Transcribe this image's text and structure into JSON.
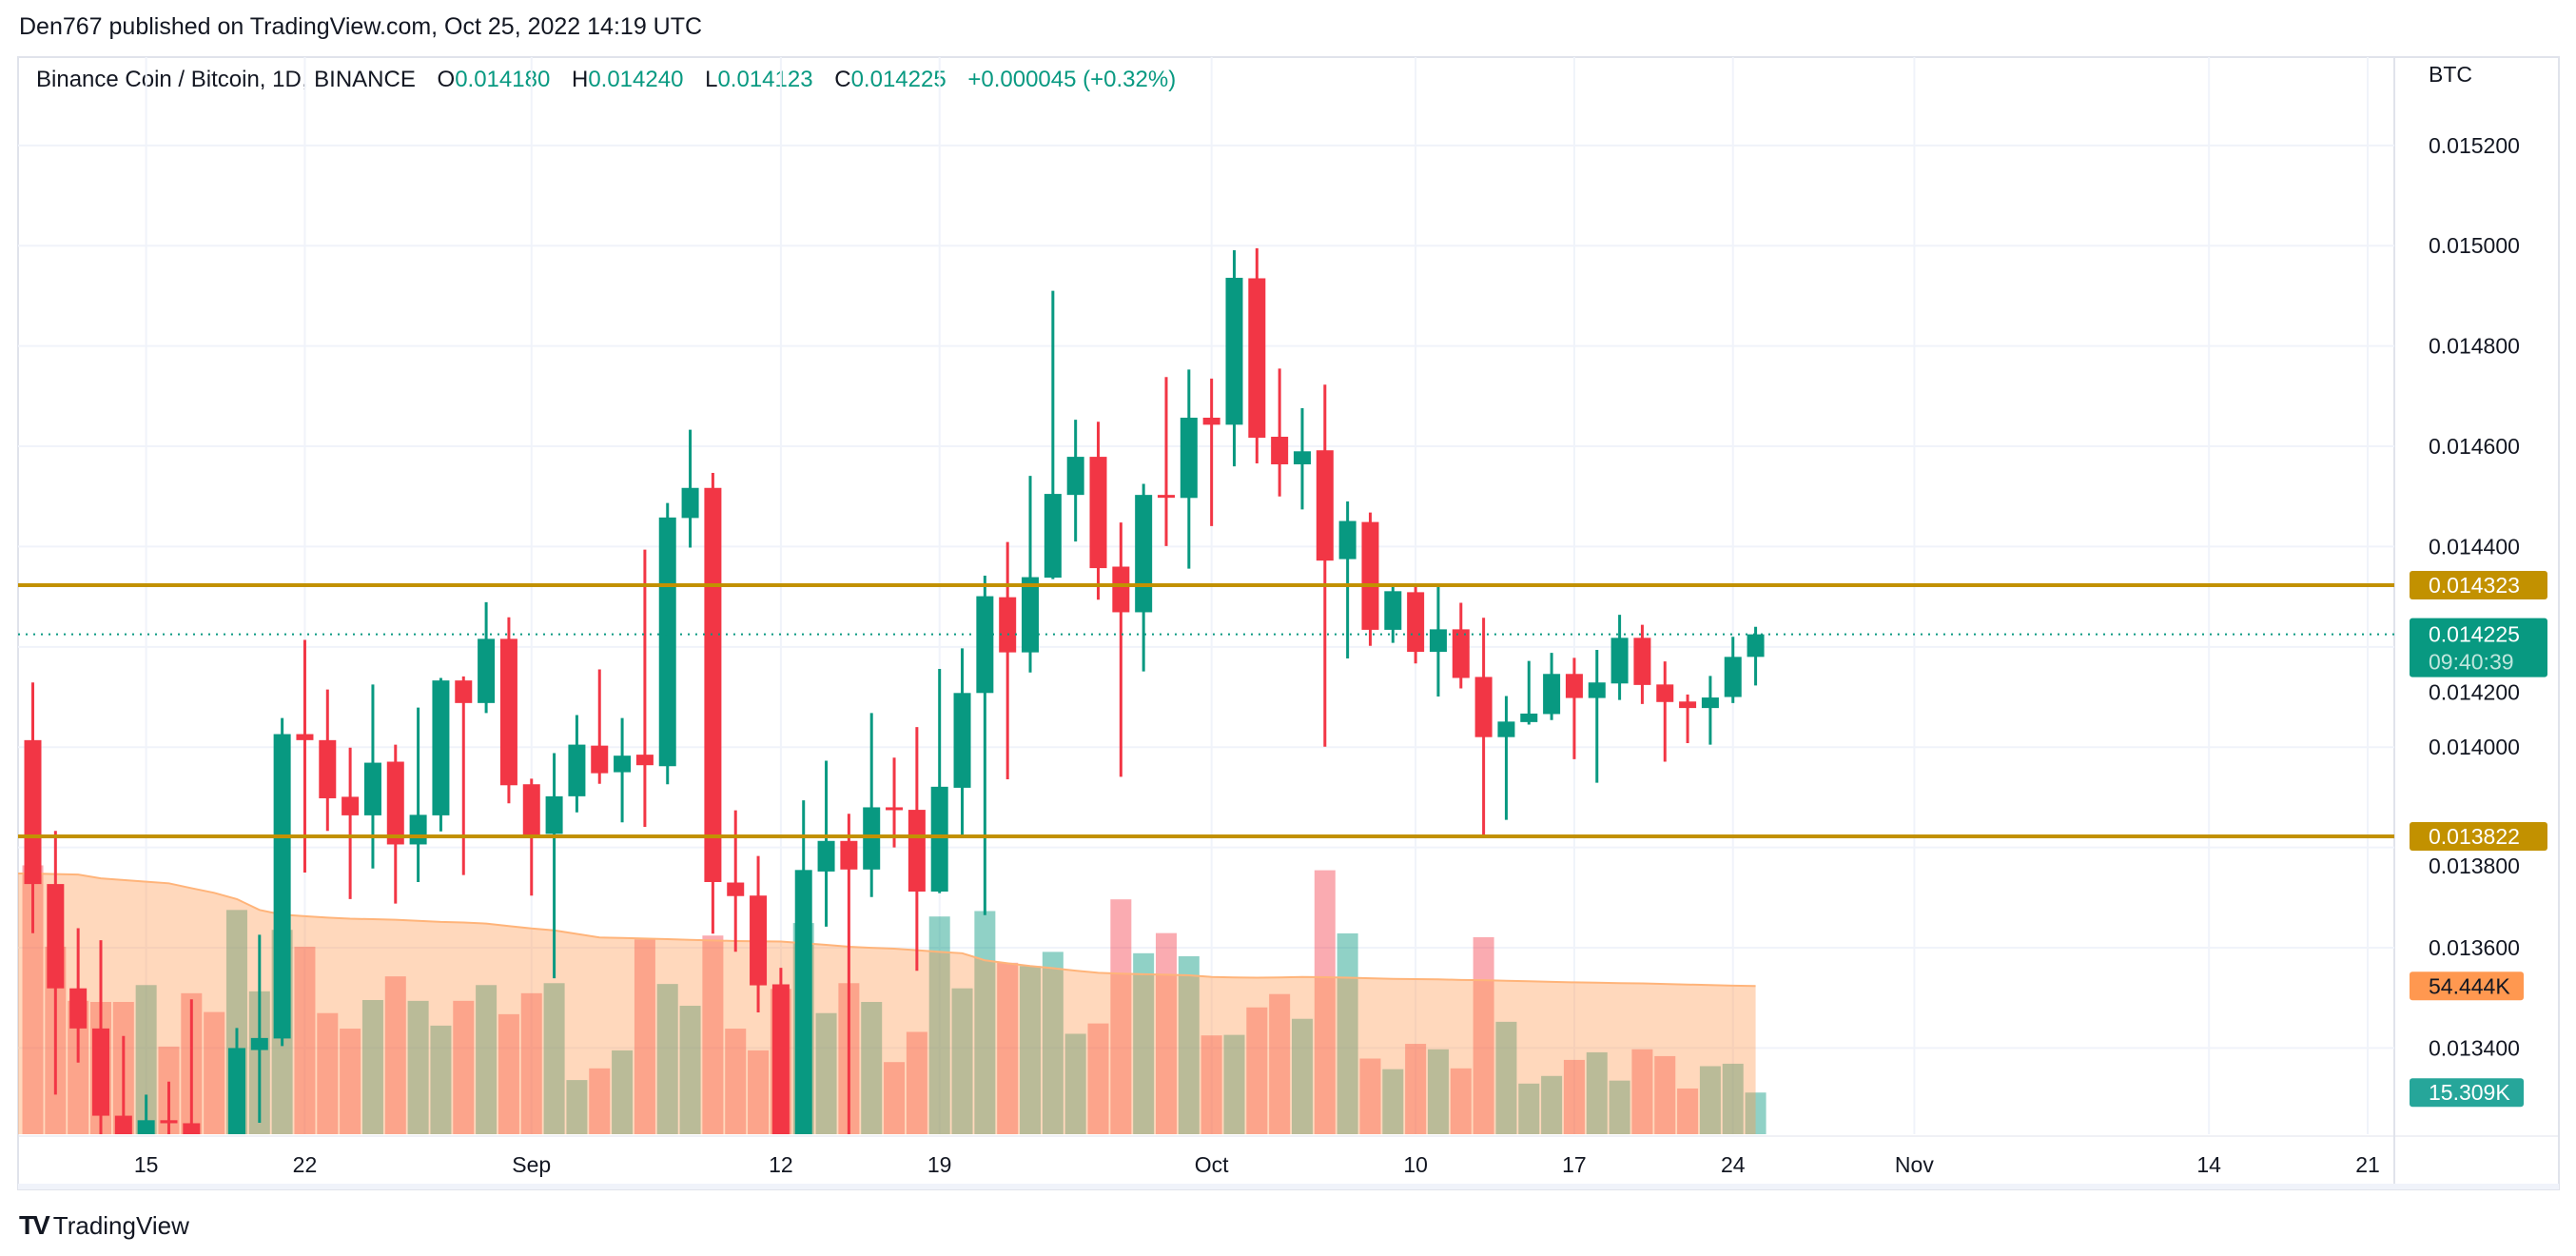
{
  "publisher_line": "Den767 published on TradingView.com, Oct 25, 2022 14:19 UTC",
  "legend": {
    "symbol": "Binance Coin / Bitcoin, 1D, BINANCE",
    "o_label": "O",
    "o": "0.014180",
    "h_label": "H",
    "h": "0.014240",
    "l_label": "L",
    "l": "0.014123",
    "c_label": "C",
    "c": "0.014225",
    "change": "+0.000045 (+0.32%)"
  },
  "footer": {
    "logo_text": "TradingView"
  },
  "colors": {
    "up": "#089981",
    "down": "#f23645",
    "level": "#c29100",
    "volume_ma": "#ff9850",
    "volume_label": "#26a69a"
  },
  "chart_data": {
    "type": "candlestick",
    "currency_label": "BTC",
    "ylim": [
      0.01316,
      0.01526
    ],
    "grid": true,
    "y_ticks": [
      "0.015200",
      "0.015000",
      "0.014800",
      "0.014600",
      "0.014400",
      "0.014200",
      "0.014000",
      "0.013800",
      "0.013600",
      "0.013400"
    ],
    "x_ticks": [
      {
        "label": "15",
        "date": "2022-08-15"
      },
      {
        "label": "22",
        "date": "2022-08-22"
      },
      {
        "label": "Sep",
        "date": "2022-09-01"
      },
      {
        "label": "12",
        "date": "2022-09-12"
      },
      {
        "label": "19",
        "date": "2022-09-19"
      },
      {
        "label": "Oct",
        "date": "2022-10-01"
      },
      {
        "label": "10",
        "date": "2022-10-10"
      },
      {
        "label": "17",
        "date": "2022-10-17"
      },
      {
        "label": "24",
        "date": "2022-10-24"
      },
      {
        "label": "Nov",
        "date": "2022-11-01"
      },
      {
        "label": "14",
        "date": "2022-11-14"
      },
      {
        "label": "21",
        "date": "2022-11-21"
      }
    ],
    "first_date": "2022-08-10",
    "ohlc": [
      [
        0.014014,
        0.014129,
        0.013629,
        0.013727
      ],
      [
        0.013727,
        0.013833,
        0.013307,
        0.013519
      ],
      [
        0.013519,
        0.013639,
        0.013371,
        0.013439
      ],
      [
        0.013439,
        0.013615,
        0.013222,
        0.013265
      ],
      [
        0.013265,
        0.013424,
        0.0132,
        0.013215
      ],
      [
        0.01321,
        0.013307,
        0.0132,
        0.013256
      ],
      [
        0.013256,
        0.013333,
        0.01322,
        0.01325
      ],
      [
        0.01325,
        0.013497,
        0.0132,
        0.013215
      ],
      [
        0.0132,
        0.01321,
        0.01312,
        0.01315
      ],
      [
        0.01318,
        0.01344,
        0.01315,
        0.0134
      ],
      [
        0.013396,
        0.013626,
        0.013251,
        0.01342
      ],
      [
        0.013419,
        0.014058,
        0.013404,
        0.014026
      ],
      [
        0.014026,
        0.014214,
        0.01375,
        0.014014
      ],
      [
        0.014014,
        0.014115,
        0.013833,
        0.013898
      ],
      [
        0.013901,
        0.013999,
        0.013697,
        0.013864
      ],
      [
        0.013864,
        0.014125,
        0.013758,
        0.013969
      ],
      [
        0.013971,
        0.014005,
        0.013688,
        0.013806
      ],
      [
        0.013806,
        0.014079,
        0.013731,
        0.013865
      ],
      [
        0.013864,
        0.014138,
        0.013832,
        0.014133
      ],
      [
        0.014133,
        0.014141,
        0.013745,
        0.014088
      ],
      [
        0.014088,
        0.014289,
        0.014068,
        0.014216
      ],
      [
        0.014216,
        0.014259,
        0.013888,
        0.013924
      ],
      [
        0.013926,
        0.013937,
        0.013704,
        0.013825
      ],
      [
        0.013827,
        0.013988,
        0.013539,
        0.013902
      ],
      [
        0.013902,
        0.014064,
        0.01387,
        0.014005
      ],
      [
        0.014003,
        0.014155,
        0.013927,
        0.013948
      ],
      [
        0.01395,
        0.014058,
        0.01385,
        0.013983
      ],
      [
        0.013985,
        0.014394,
        0.013841,
        0.013964
      ],
      [
        0.013962,
        0.014487,
        0.013926,
        0.014458
      ],
      [
        0.014457,
        0.014633,
        0.014398,
        0.014517
      ],
      [
        0.014517,
        0.014547,
        0.013628,
        0.013731
      ],
      [
        0.01373,
        0.013874,
        0.013592,
        0.013703
      ],
      [
        0.013704,
        0.013783,
        0.013471,
        0.013525
      ],
      [
        0.013527,
        0.01356,
        0.01315,
        0.01318
      ],
      [
        0.01319,
        0.013894,
        0.01316,
        0.013755
      ],
      [
        0.013752,
        0.013973,
        0.013642,
        0.013813
      ],
      [
        0.013813,
        0.013867,
        0.0132,
        0.013756
      ],
      [
        0.013756,
        0.014068,
        0.013701,
        0.01388
      ],
      [
        0.01388,
        0.013979,
        0.0138,
        0.013875
      ],
      [
        0.013875,
        0.01404,
        0.013554,
        0.013712
      ],
      [
        0.013712,
        0.014156,
        0.013709,
        0.013921
      ],
      [
        0.013919,
        0.014197,
        0.013825,
        0.014108
      ],
      [
        0.014108,
        0.014342,
        0.013665,
        0.014301
      ],
      [
        0.014299,
        0.014409,
        0.013936,
        0.014189
      ],
      [
        0.014189,
        0.014541,
        0.014149,
        0.014339
      ],
      [
        0.014338,
        0.01491,
        0.014335,
        0.014505
      ],
      [
        0.014503,
        0.014653,
        0.01441,
        0.014579
      ],
      [
        0.014579,
        0.014649,
        0.014294,
        0.014357
      ],
      [
        0.01436,
        0.014448,
        0.013941,
        0.014269
      ],
      [
        0.014269,
        0.014525,
        0.014151,
        0.014503
      ],
      [
        0.014503,
        0.014738,
        0.014401,
        0.014498
      ],
      [
        0.014497,
        0.014753,
        0.014356,
        0.014657
      ],
      [
        0.014657,
        0.014735,
        0.014441,
        0.014643
      ],
      [
        0.014643,
        0.014991,
        0.01456,
        0.014936
      ],
      [
        0.014935,
        0.014995,
        0.014566,
        0.014617
      ],
      [
        0.014619,
        0.014755,
        0.0145,
        0.014564
      ],
      [
        0.014564,
        0.014676,
        0.014474,
        0.01459
      ],
      [
        0.014592,
        0.014723,
        0.014001,
        0.014372
      ],
      [
        0.014375,
        0.01449,
        0.014177,
        0.014451
      ],
      [
        0.014449,
        0.014468,
        0.014202,
        0.014234
      ],
      [
        0.014234,
        0.014323,
        0.014208,
        0.014311
      ],
      [
        0.014309,
        0.014323,
        0.014167,
        0.01419
      ],
      [
        0.01419,
        0.014325,
        0.014101,
        0.014235
      ],
      [
        0.014235,
        0.014288,
        0.014117,
        0.014138
      ],
      [
        0.01414,
        0.014258,
        0.013822,
        0.01402
      ],
      [
        0.01402,
        0.014102,
        0.013855,
        0.014051
      ],
      [
        0.01405,
        0.014172,
        0.014045,
        0.014067
      ],
      [
        0.014066,
        0.014188,
        0.014054,
        0.014146
      ],
      [
        0.014146,
        0.014178,
        0.013976,
        0.014098
      ],
      [
        0.014098,
        0.014194,
        0.013929,
        0.014129
      ],
      [
        0.014127,
        0.014264,
        0.014094,
        0.014218
      ],
      [
        0.014218,
        0.014244,
        0.014086,
        0.014124
      ],
      [
        0.014125,
        0.014171,
        0.013971,
        0.01409
      ],
      [
        0.014091,
        0.014105,
        0.014008,
        0.014078
      ],
      [
        0.014078,
        0.014142,
        0.014005,
        0.014099
      ],
      [
        0.0141,
        0.01422,
        0.014088,
        0.01418
      ],
      [
        0.01418,
        0.01424,
        0.014123,
        0.014225
      ]
    ],
    "volume_k": [
      98.8,
      68.9,
      49,
      48.6,
      48.6,
      54.8,
      32.2,
      51.8,
      44.9,
      82.4,
      52.5,
      75.1,
      68.9,
      44.5,
      38.8,
      49.3,
      58,
      49,
      39.9,
      49,
      54.8,
      44.1,
      51.8,
      55.5,
      19.9,
      24.2,
      30.8,
      71.6,
      55.2,
      47.2,
      73,
      38.8,
      30.8,
      53.4,
      77.6,
      44.5,
      55.5,
      48.6,
      26.5,
      37.6,
      80,
      53.6,
      82,
      63,
      61.8,
      67,
      36.9,
      40.7,
      86.3,
      66.5,
      73.9,
      65.4,
      36.3,
      36.5,
      46.6,
      51.5,
      42.4,
      97,
      73.8,
      27.8,
      23.9,
      33.2,
      31.2,
      24.2,
      72.4,
      41.3,
      18.6,
      21.4,
      27.3,
      30.1,
      19.7,
      31.2,
      28.7,
      16.8,
      25,
      25.9,
      15.309
    ],
    "volume_ma_k": [
      95.8,
      95.6,
      95.4,
      94.0,
      93.4,
      92.8,
      92.2,
      90.4,
      88.7,
      86.4,
      82.4,
      80.7,
      80.1,
      79.6,
      79.2,
      79.0,
      78.8,
      78.4,
      78.0,
      77.8,
      77.4,
      76.5,
      75.6,
      74.9,
      73.6,
      72.3,
      72.1,
      71.9,
      71.7,
      71.4,
      71.2,
      71.0,
      70.9,
      70.8,
      70.2,
      69.6,
      68.9,
      68.5,
      68.2,
      67.6,
      67.0,
      66.5,
      63.9,
      62.8,
      61.8,
      61.0,
      60.1,
      59.3,
      59.0,
      58.8,
      58.6,
      58.4,
      57.8,
      57.6,
      57.5,
      57.6,
      57.8,
      57.7,
      57.5,
      57.3,
      57.1,
      57.0,
      56.9,
      56.7,
      56.6,
      56.4,
      56.2,
      56.0,
      55.8,
      55.7,
      55.5,
      55.4,
      55.2,
      55.0,
      54.8,
      54.6,
      54.444
    ],
    "levels": [
      {
        "price": 0.014323,
        "label": "0.014323"
      },
      {
        "price": 0.013822,
        "label": "0.013822"
      }
    ],
    "last_price": {
      "price": 0.014225,
      "label": "0.014225",
      "countdown": "09:40:39"
    },
    "volume_ma_label": "54.444K",
    "volume_label": "15.309K"
  }
}
